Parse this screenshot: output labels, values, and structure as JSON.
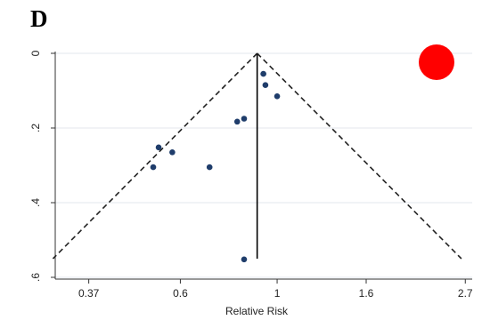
{
  "panel_label": "D",
  "marker_color": "#ff0000",
  "chart_data": {
    "type": "scatter",
    "subtype": "funnel-plot",
    "title": "",
    "xlabel": "Relative Risk",
    "ylabel": "",
    "x_scale": "log",
    "y_inverted": true,
    "xlim": [
      0.31,
      2.8
    ],
    "ylim": [
      0,
      0.6
    ],
    "x_ticks": [
      {
        "value": 0.37,
        "label": "0.37"
      },
      {
        "value": 0.6,
        "label": "0.6"
      },
      {
        "value": 1,
        "label": "1"
      },
      {
        "value": 1.6,
        "label": "1.6"
      },
      {
        "value": 2.7,
        "label": "2.7"
      }
    ],
    "y_ticks": [
      {
        "value": 0,
        "label": "0"
      },
      {
        "value": 0.2,
        "label": ".2"
      },
      {
        "value": 0.4,
        "label": ".4"
      },
      {
        "value": 0.6,
        "label": ".6"
      }
    ],
    "grid": "horizontal",
    "pooled_estimate": 0.9,
    "pseudo_ci_limits": {
      "se_max": 0.55
    },
    "point_color": "#1f3d6b",
    "points": [
      {
        "x": 0.93,
        "y": 0.055
      },
      {
        "x": 0.94,
        "y": 0.085
      },
      {
        "x": 1.0,
        "y": 0.115
      },
      {
        "x": 0.84,
        "y": 0.175
      },
      {
        "x": 0.81,
        "y": 0.183
      },
      {
        "x": 0.535,
        "y": 0.252
      },
      {
        "x": 0.575,
        "y": 0.265
      },
      {
        "x": 0.52,
        "y": 0.305
      },
      {
        "x": 0.7,
        "y": 0.305
      },
      {
        "x": 0.84,
        "y": 0.552
      }
    ]
  }
}
